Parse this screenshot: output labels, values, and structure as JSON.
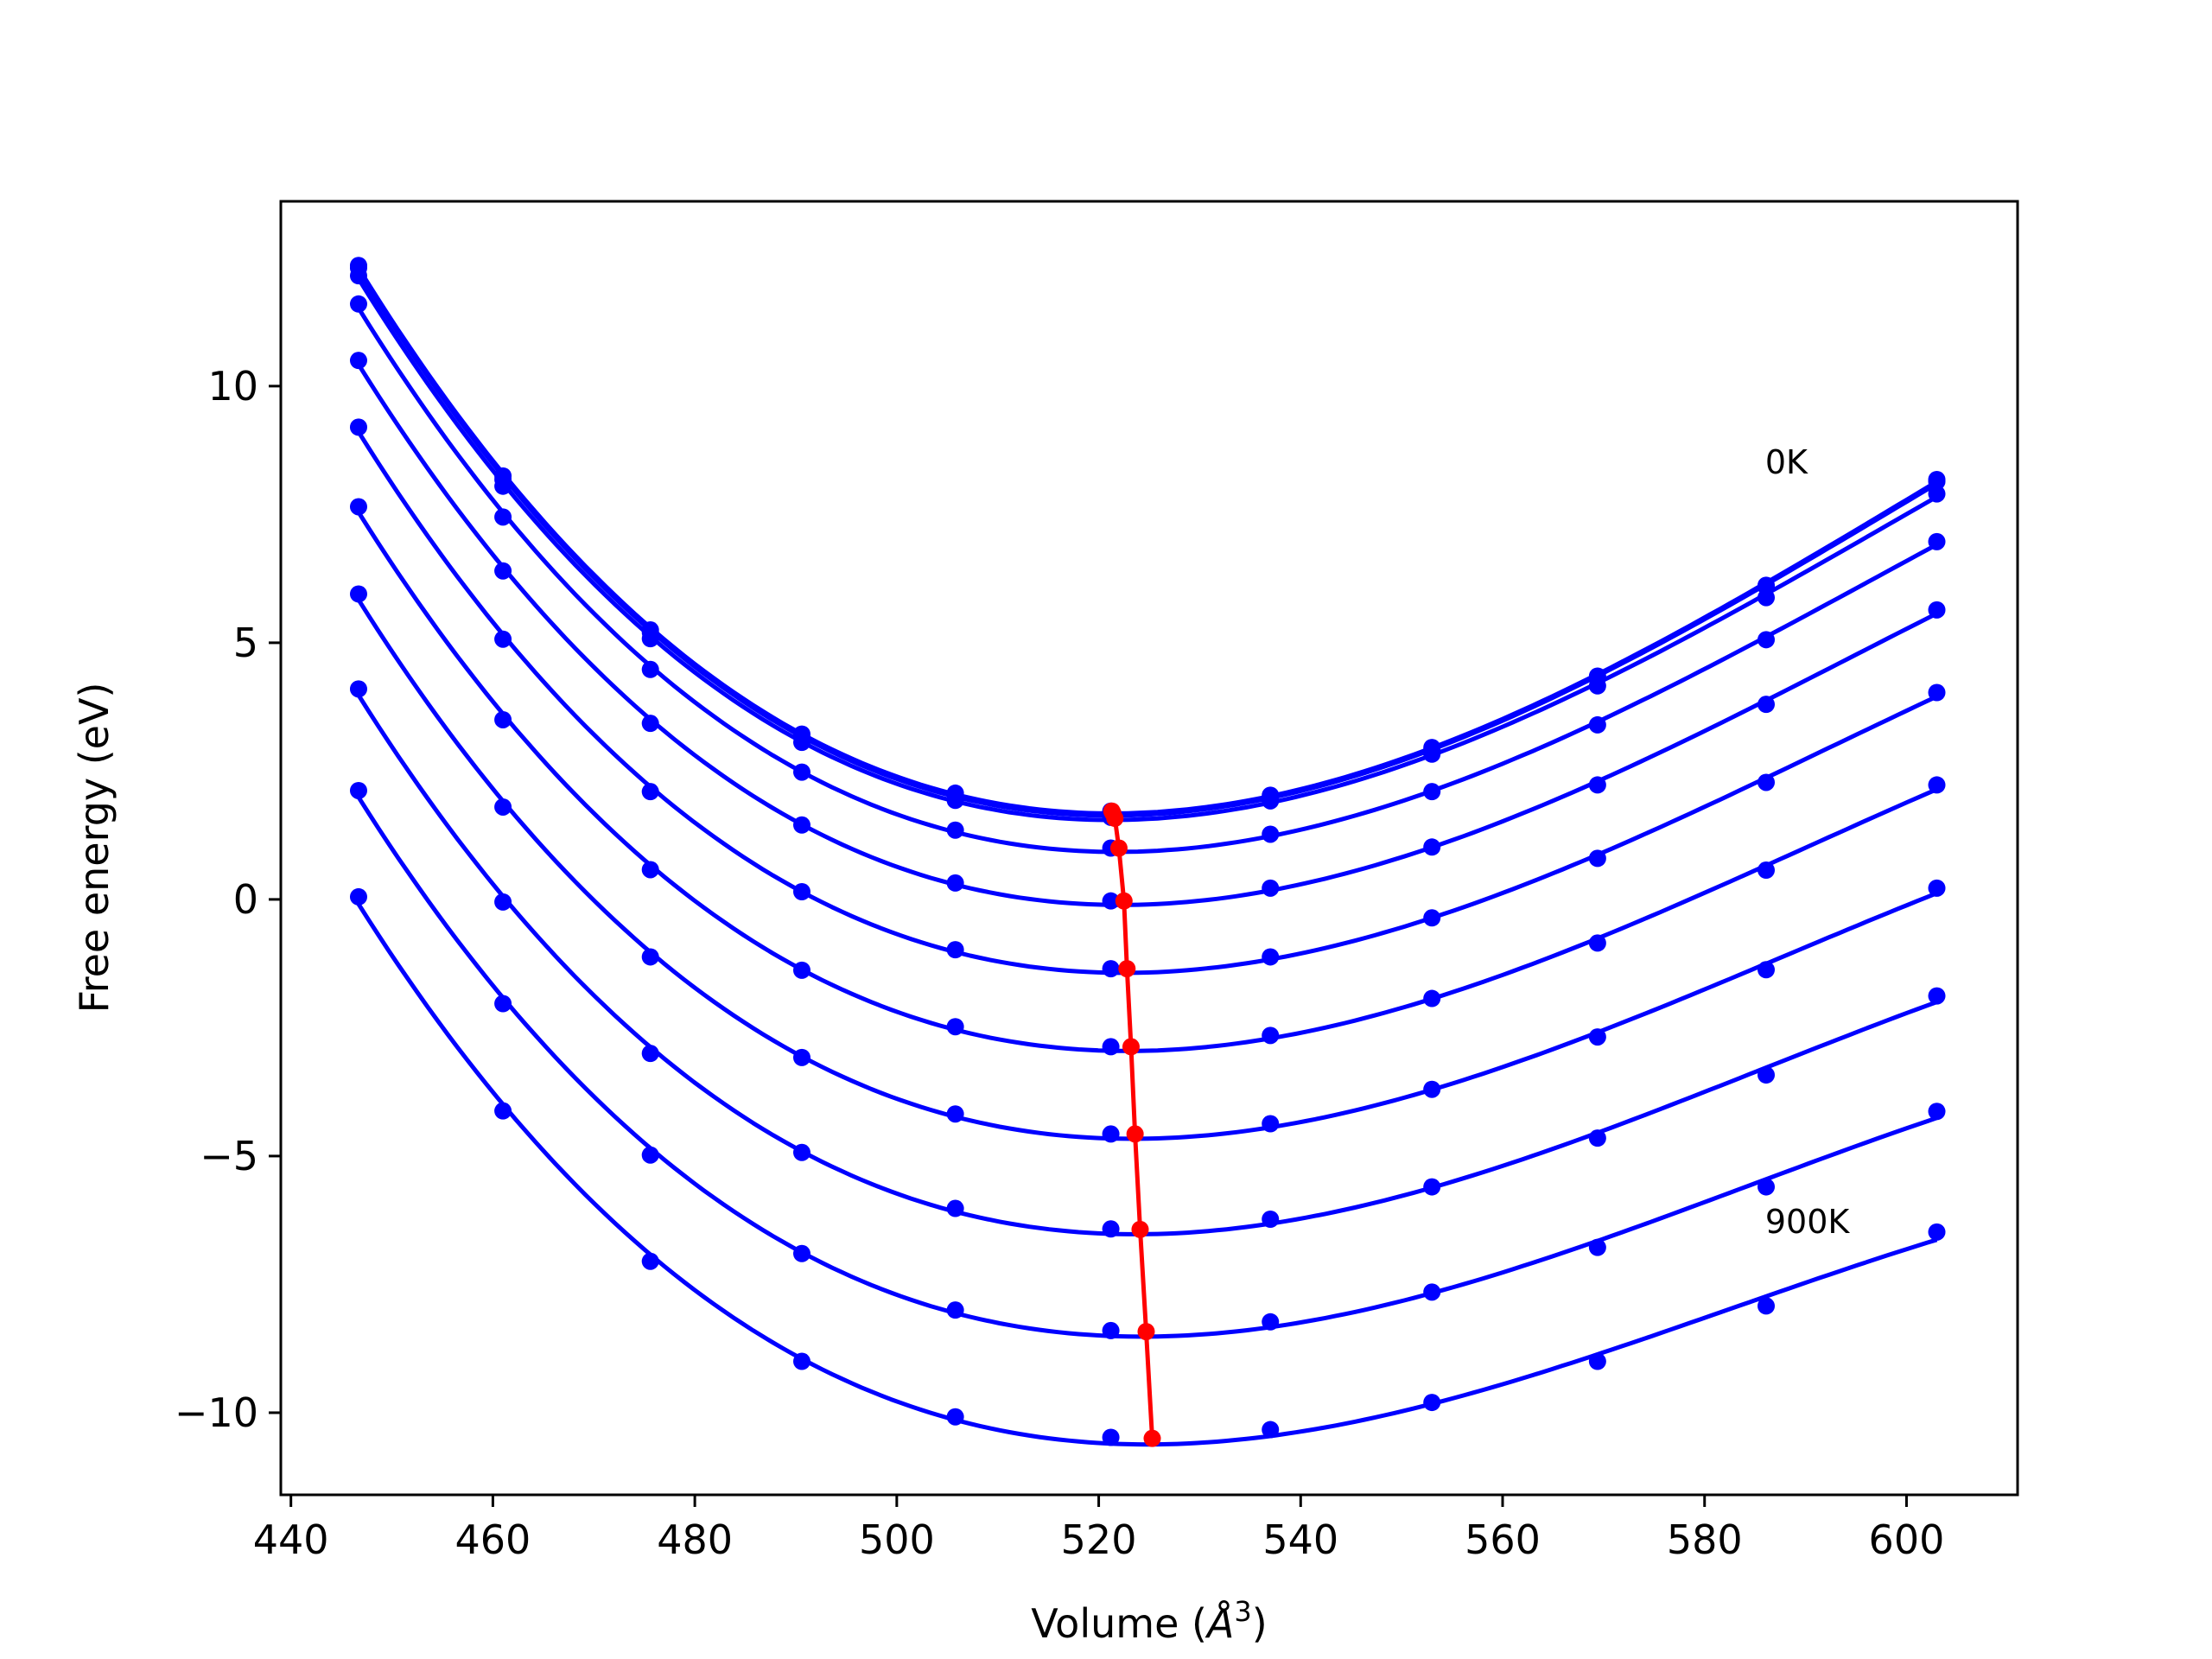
{
  "chart_data": {
    "type": "line",
    "xlabel": "Volume ($\\AA^3$)",
    "ylabel": "Free energy (eV)",
    "xlim": [
      439,
      611
    ],
    "ylim": [
      -11.6,
      13.6
    ],
    "xticks": [
      440,
      460,
      480,
      500,
      520,
      540,
      560,
      580,
      600
    ],
    "yticks": [
      -10,
      -5,
      0,
      5,
      10
    ],
    "ytick_labels": [
      "−10",
      "−5",
      "0",
      "5",
      "10"
    ],
    "grid": false,
    "legend": "none",
    "annotations": [
      {
        "text": "0K",
        "x": 586,
        "y": 8.3
      },
      {
        "text": "900K",
        "x": 586,
        "y": -6.5
      }
    ],
    "x": [
      446.7,
      461.0,
      475.6,
      490.6,
      505.8,
      521.2,
      537.0,
      553.0,
      569.4,
      586.1,
      603.0
    ],
    "series": [
      {
        "values": [
          12.35,
          8.25,
          5.25,
          3.22,
          2.07,
          1.72,
          2.03,
          2.96,
          4.35,
          6.12,
          8.18
        ],
        "min": {
          "x": 521.3,
          "y": 1.72
        }
      },
      {
        "values": [
          12.3,
          8.18,
          5.2,
          3.17,
          2.03,
          1.68,
          1.99,
          2.92,
          4.32,
          6.09,
          8.14
        ],
        "min": {
          "x": 521.4,
          "y": 1.68
        }
      },
      {
        "values": [
          12.15,
          8.05,
          5.08,
          3.06,
          1.93,
          1.6,
          1.92,
          2.83,
          4.16,
          5.88,
          7.9
        ],
        "min": {
          "x": 521.6,
          "y": 1.58
        }
      },
      {
        "values": [
          11.6,
          7.45,
          4.48,
          2.48,
          1.35,
          1.0,
          1.27,
          2.1,
          3.4,
          5.06,
          6.97
        ],
        "min": {
          "x": 522.0,
          "y": 1.0
        }
      },
      {
        "values": [
          10.5,
          6.4,
          3.43,
          1.45,
          0.32,
          -0.03,
          0.22,
          1.02,
          2.23,
          3.8,
          5.64
        ],
        "min": {
          "x": 522.5,
          "y": -0.03
        }
      },
      {
        "values": [
          9.2,
          5.07,
          2.1,
          0.15,
          -0.98,
          -1.35,
          -1.12,
          -0.36,
          0.8,
          2.28,
          4.03
        ],
        "min": {
          "x": 522.8,
          "y": -1.35
        }
      },
      {
        "values": [
          7.65,
          3.5,
          0.58,
          -1.38,
          -2.48,
          -2.87,
          -2.65,
          -1.93,
          -0.85,
          0.57,
          2.23
        ],
        "min": {
          "x": 523.2,
          "y": -2.87
        }
      },
      {
        "values": [
          5.95,
          1.8,
          -1.12,
          -3.08,
          -4.18,
          -4.57,
          -4.37,
          -3.7,
          -2.68,
          -1.37,
          0.22
        ],
        "min": {
          "x": 523.6,
          "y": -4.57
        }
      },
      {
        "values": [
          4.1,
          -0.05,
          -3.0,
          -4.93,
          -6.02,
          -6.42,
          -6.23,
          -5.6,
          -4.65,
          -3.42,
          -1.88
        ],
        "min": {
          "x": 524.1,
          "y": -6.43
        }
      },
      {
        "values": [
          2.12,
          -2.03,
          -4.98,
          -6.9,
          -8.0,
          -8.4,
          -8.23,
          -7.65,
          -6.78,
          -5.6,
          -4.13
        ],
        "min": {
          "x": 524.7,
          "y": -8.42
        }
      },
      {
        "values": [
          0.05,
          -4.12,
          -7.05,
          -9.0,
          -10.08,
          -10.48,
          -10.33,
          -9.8,
          -9.0,
          -7.92,
          -6.48
        ],
        "min": {
          "x": 525.3,
          "y": -10.5
        }
      }
    ],
    "colors": {
      "curves": "#0000ff",
      "minima": "#ff0000",
      "axes": "#000000"
    }
  }
}
